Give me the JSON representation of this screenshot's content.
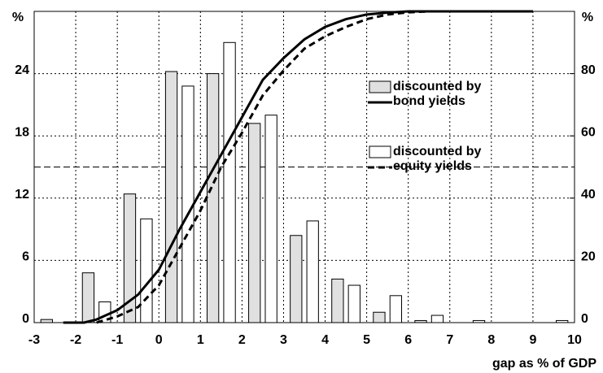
{
  "chart_data": {
    "type": "bar",
    "x": [
      -2.5,
      -1.5,
      -0.5,
      0.5,
      1.5,
      2.5,
      3.5,
      4.5,
      5.5,
      6.5,
      7.5,
      8.5,
      9.5
    ],
    "series": [
      {
        "name": "discounted by bond yields",
        "color": "#e0e0e0",
        "values": [
          0.3,
          4.8,
          12.4,
          24.2,
          24.0,
          19.2,
          8.4,
          4.2,
          1.0,
          0.2,
          0,
          0,
          0
        ]
      },
      {
        "name": "discounted by equity yields",
        "color": "#ffffff",
        "values": [
          0,
          2.0,
          10.0,
          22.8,
          27.0,
          20.0,
          9.8,
          3.6,
          2.6,
          0.7,
          0.2,
          0,
          0.2
        ]
      },
      {
        "type": "line",
        "style": "solid",
        "axis": "y2",
        "color": "#000000",
        "x": [
          -2.3,
          -1.8,
          -1.5,
          -1,
          -0.5,
          0,
          0.5,
          1,
          1.5,
          2,
          2.5,
          3,
          3.5,
          4,
          4.5,
          5,
          5.5,
          6,
          9
        ],
        "values": [
          0,
          0,
          1,
          4,
          9,
          17,
          30,
          42,
          54,
          66,
          78,
          85,
          91,
          95,
          97.5,
          99,
          99.6,
          100,
          100
        ]
      },
      {
        "type": "line",
        "style": "dashed",
        "axis": "y2",
        "color": "#000000",
        "x": [
          -1.5,
          -1,
          -0.5,
          0,
          0.5,
          1,
          1.5,
          2,
          2.5,
          3,
          3.5,
          4,
          4.5,
          5,
          5.5,
          6,
          6.5,
          9
        ],
        "values": [
          0,
          2,
          5,
          12,
          24,
          36,
          50,
          61,
          73,
          81,
          88,
          92,
          95,
          97.5,
          99,
          99.7,
          100,
          100
        ]
      }
    ],
    "xlim": [
      -3,
      10
    ],
    "xticks": [
      -3,
      -2,
      -1,
      0,
      1,
      2,
      3,
      4,
      5,
      6,
      7,
      8,
      9,
      10
    ],
    "ylim": [
      0,
      30
    ],
    "yticks": [
      0,
      6,
      12,
      18,
      24
    ],
    "y2lim": [
      0,
      100
    ],
    "y2ticks": [
      0,
      20,
      40,
      60,
      80
    ],
    "ref_line_y2": 50,
    "ylabel": "%",
    "y2label": "%",
    "xlabel": "gap as % of GDP",
    "grid": true
  }
}
